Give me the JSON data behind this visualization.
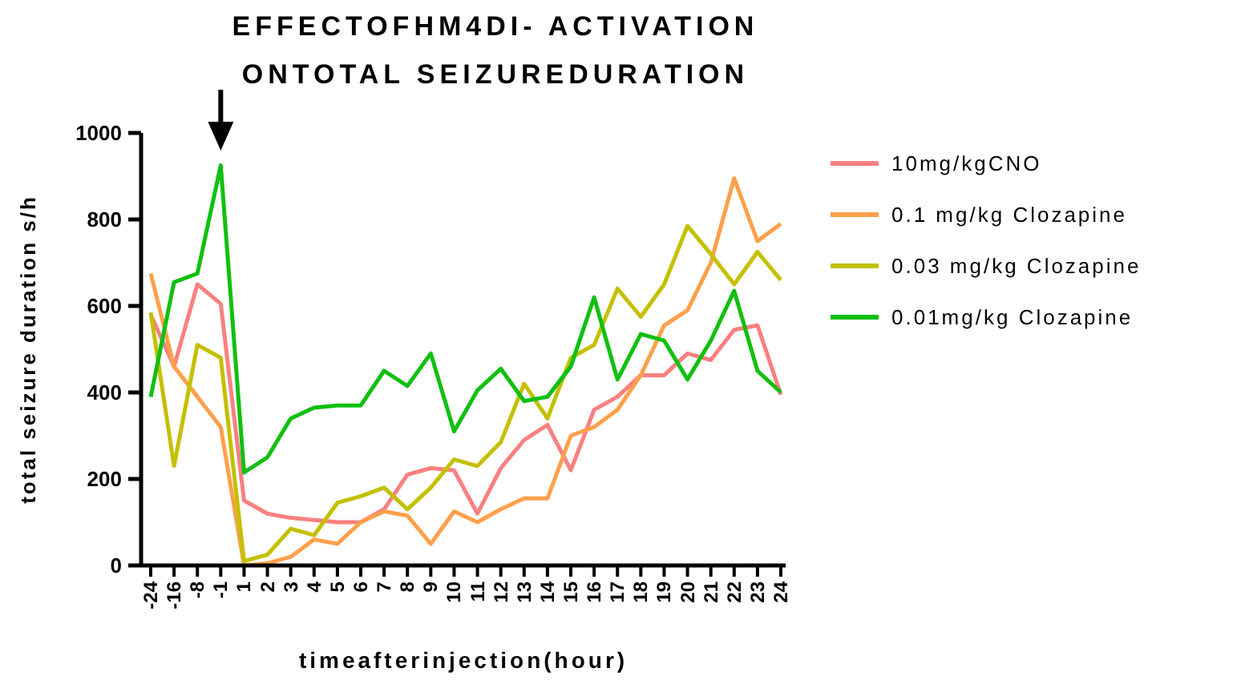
{
  "chart_data": {
    "type": "line",
    "title": "EFFECTOFHM4DI- ACTIVATION\nONTOTAL SEIZUREDURATION",
    "xlabel": "timeafterinjection(hour)",
    "ylabel": "total seizure duration s/h",
    "categories": [
      "-24",
      "-16",
      "-8",
      "-1",
      "1",
      "2",
      "3",
      "4",
      "5",
      "6",
      "7",
      "8",
      "9",
      "10",
      "11",
      "12",
      "13",
      "14",
      "15",
      "16",
      "17",
      "18",
      "19",
      "20",
      "21",
      "22",
      "23",
      "24"
    ],
    "series": [
      {
        "name": "10mg/kgCNO",
        "color": "#fa8080",
        "values": [
          580,
          460,
          650,
          605,
          150,
          120,
          110,
          105,
          100,
          100,
          130,
          210,
          225,
          220,
          120,
          225,
          290,
          325,
          220,
          360,
          390,
          440,
          440,
          490,
          475,
          545,
          555,
          395
        ]
      },
      {
        "name": "0.1 mg/kg Clozapine",
        "color": "#ffa04a",
        "values": [
          675,
          460,
          390,
          320,
          0,
          5,
          20,
          60,
          50,
          100,
          125,
          115,
          50,
          125,
          100,
          130,
          155,
          155,
          300,
          320,
          360,
          440,
          555,
          590,
          700,
          895,
          750,
          790
        ]
      },
      {
        "name": "0.03 mg/kg Clozapine",
        "color": "#c4c000",
        "values": [
          585,
          230,
          510,
          480,
          10,
          25,
          85,
          70,
          145,
          160,
          180,
          130,
          180,
          245,
          230,
          285,
          420,
          340,
          480,
          510,
          640,
          575,
          650,
          785,
          720,
          650,
          725,
          660
        ]
      },
      {
        "name": "0.01mg/kg Clozapine",
        "color": "#10c010",
        "values": [
          390,
          655,
          675,
          925,
          215,
          250,
          340,
          365,
          370,
          370,
          450,
          415,
          490,
          310,
          405,
          455,
          380,
          390,
          460,
          620,
          430,
          535,
          520,
          430,
          520,
          635,
          450,
          400
        ]
      }
    ],
    "ylim": [
      0,
      1000
    ],
    "yticks": [
      0,
      200,
      400,
      600,
      800,
      1000
    ],
    "grid": false,
    "legend": "right",
    "marker": "none",
    "line_style": "solid"
  }
}
